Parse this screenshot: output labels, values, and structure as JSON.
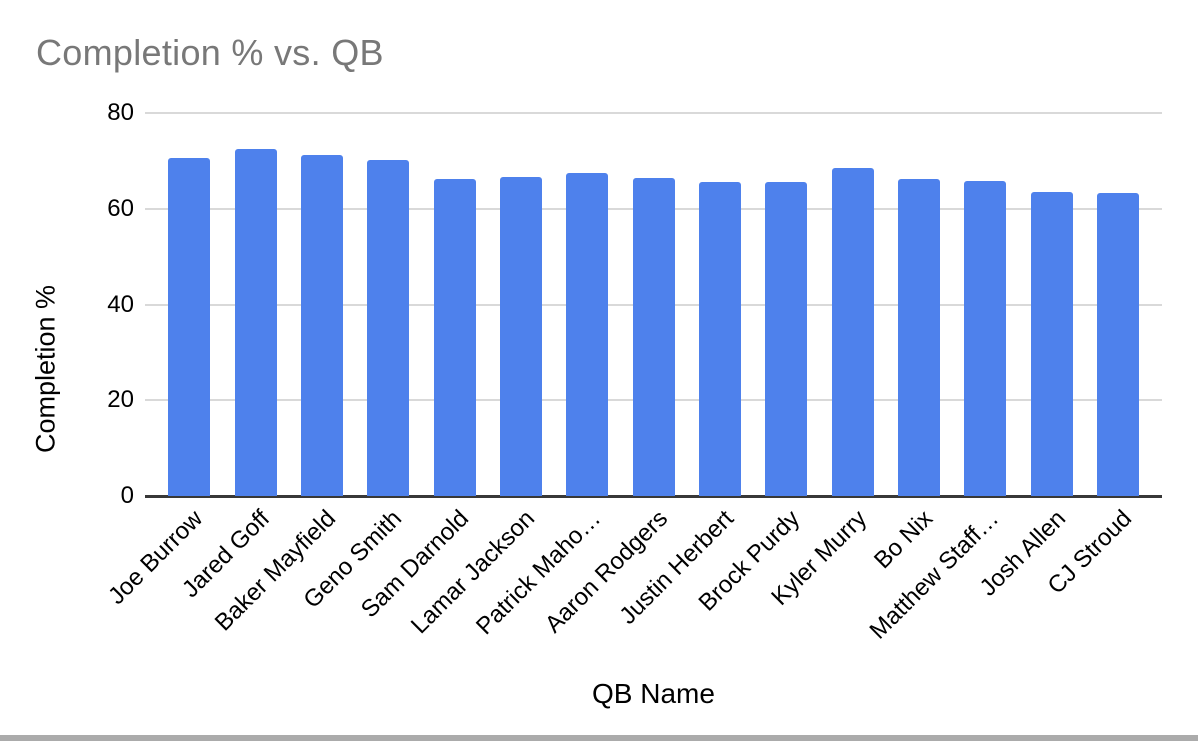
{
  "title": "Completion % vs. QB",
  "colors": {
    "bar": "#4e81ec",
    "gridline": "#d9d9d9",
    "axis_line": "#383838",
    "title_text": "#787878",
    "label_text": "#000000",
    "footer_strip": "#ababab"
  },
  "chart_data": {
    "type": "bar",
    "title": "Completion % vs. QB",
    "xlabel": "QB Name",
    "ylabel": "Completion %",
    "categories": [
      "Joe Burrow",
      "Jared Goff",
      "Baker Mayfield",
      "Geno Smith",
      "Sam Darnold",
      "Lamar Jackson",
      "Patrick Maho…",
      "Aaron Rodgers",
      "Justin Herbert",
      "Brock Purdy",
      "Kyler Murry",
      "Bo Nix",
      "Matthew Staff…",
      "Josh Allen",
      "CJ Stroud"
    ],
    "values": [
      70.6,
      72.4,
      71.2,
      70.2,
      66.2,
      66.6,
      67.5,
      66.5,
      65.6,
      65.6,
      68.6,
      66.3,
      65.7,
      63.5,
      63.2
    ],
    "ylim": [
      0,
      80
    ],
    "yticks": [
      0,
      20,
      40,
      60,
      80
    ],
    "grid": true,
    "legend_position": "none",
    "bar_color": "#4e81ec",
    "x_label_rotation_deg": 45
  }
}
